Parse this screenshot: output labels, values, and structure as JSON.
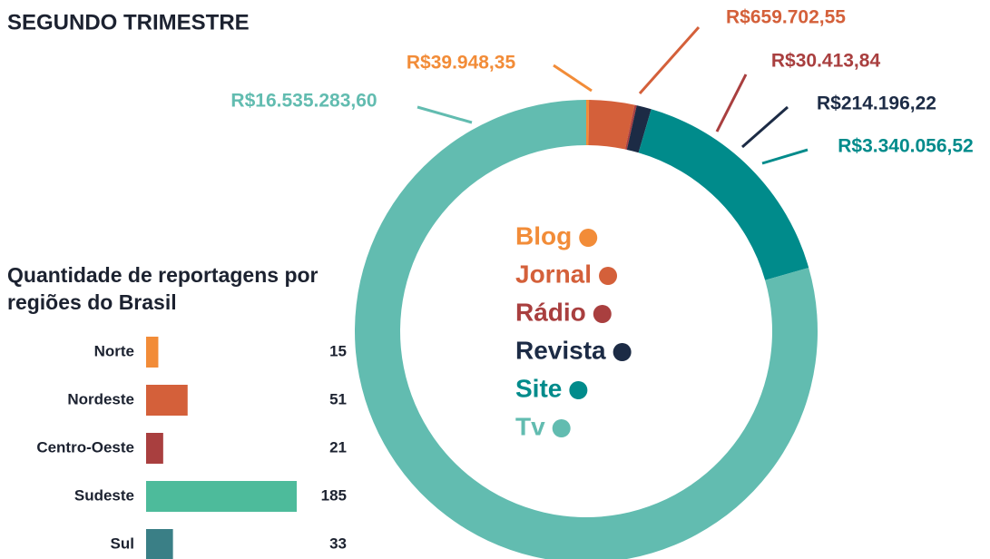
{
  "chart_data": [
    {
      "type": "donut",
      "title": "SEGUNDO TRIMESTRE",
      "categories": [
        "Blog",
        "Jornal",
        "Rádio",
        "Revista",
        "Site",
        "Tv"
      ],
      "values": [
        39948.35,
        659702.55,
        30413.84,
        214196.22,
        3340056.52,
        16535283.6
      ],
      "value_labels": [
        "R$39.948,35",
        "R$659.702,55",
        "R$30.413,84",
        "R$214.196,22",
        "R$3.340.056,52",
        "R$16.535.283,60"
      ],
      "colors": [
        "#f28c38",
        "#d4603a",
        "#a93f3f",
        "#1c2b45",
        "#008b8b",
        "#62bcb0"
      ]
    },
    {
      "type": "bar",
      "orientation": "horizontal",
      "title": "Quantidade de reportagens por regiões do Brasil",
      "categories": [
        "Norte",
        "Nordeste",
        "Centro-Oeste",
        "Sudeste",
        "Sul"
      ],
      "values": [
        15,
        51,
        21,
        185,
        33
      ],
      "colors": [
        "#f28c38",
        "#d4603a",
        "#a93f3f",
        "#4dbb9b",
        "#3a7f86"
      ]
    }
  ]
}
